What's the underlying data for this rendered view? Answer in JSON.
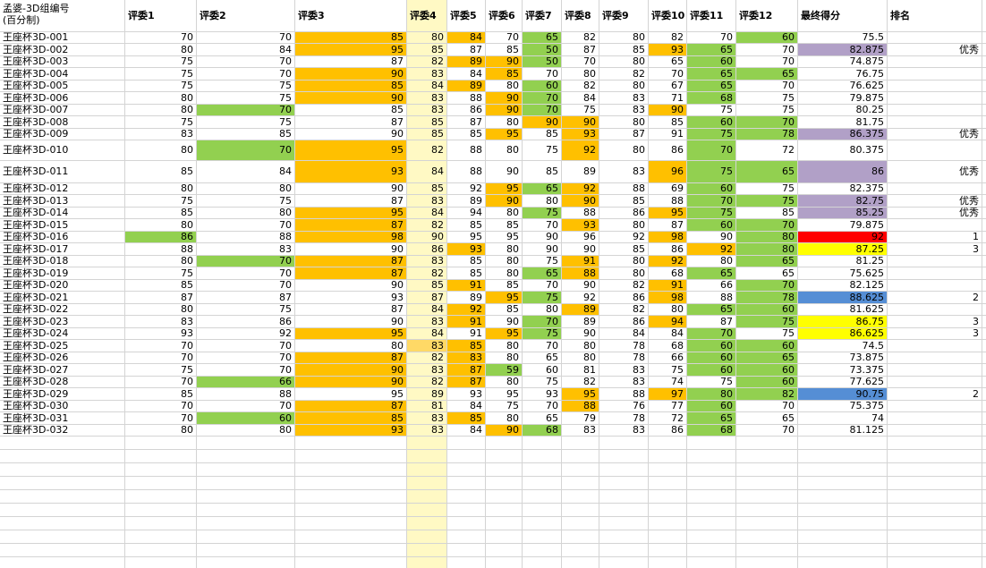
{
  "colors": {
    "orange": "#ffc000",
    "green": "#92d050",
    "purple": "#b1a0c7",
    "red": "#ff0000",
    "yellow": "#ffff00",
    "blue": "#558ed5",
    "judge4": "#fff9c4",
    "judge4_highlight": "#ffd966"
  },
  "sheet": {
    "corner_line1": "孟婆-3D组编号",
    "corner_line2": "(百分制)",
    "headers": [
      "评委1",
      "评委2",
      "评委3",
      "评委4",
      "评委5",
      "评委6",
      "评委7",
      "评委8",
      "评委9",
      "评委10",
      "评委11",
      "评委12",
      "最终得分",
      "排名"
    ],
    "rows": [
      {
        "id": "王座杯3D-001",
        "s": [
          "70",
          "70",
          "85",
          "80",
          "84",
          "70",
          "65",
          "82",
          "80",
          "82",
          "70",
          "60"
        ],
        "f": "75.5",
        "r": "",
        "c": [
          "",
          "",
          "O",
          "",
          "O",
          "",
          "G",
          "",
          "",
          "",
          "",
          "G"
        ],
        "fc": ""
      },
      {
        "id": "王座杯3D-002",
        "s": [
          "80",
          "84",
          "95",
          "85",
          "87",
          "85",
          "50",
          "87",
          "85",
          "93",
          "65",
          "70"
        ],
        "f": "82.875",
        "r": "优秀",
        "c": [
          "",
          "",
          "O",
          "",
          "",
          "",
          "G",
          "",
          "",
          "O",
          "G",
          ""
        ],
        "fc": "P"
      },
      {
        "id": "王座杯3D-003",
        "s": [
          "75",
          "70",
          "87",
          "82",
          "89",
          "90",
          "50",
          "70",
          "80",
          "65",
          "60",
          "70"
        ],
        "f": "74.875",
        "r": "",
        "c": [
          "",
          "",
          "",
          "",
          "O",
          "O",
          "G",
          "",
          "",
          "",
          "G",
          ""
        ],
        "fc": ""
      },
      {
        "id": "王座杯3D-004",
        "s": [
          "75",
          "70",
          "90",
          "83",
          "84",
          "85",
          "70",
          "80",
          "82",
          "70",
          "65",
          "65"
        ],
        "f": "76.75",
        "r": "",
        "c": [
          "",
          "",
          "O",
          "",
          "",
          "O",
          "",
          "",
          "",
          "",
          "G",
          "G"
        ],
        "fc": ""
      },
      {
        "id": "王座杯3D-005",
        "s": [
          "75",
          "75",
          "85",
          "84",
          "89",
          "80",
          "60",
          "82",
          "80",
          "67",
          "65",
          "70"
        ],
        "f": "76.625",
        "r": "",
        "c": [
          "",
          "",
          "O",
          "",
          "O",
          "",
          "G",
          "",
          "",
          "",
          "G",
          ""
        ],
        "fc": ""
      },
      {
        "id": "王座杯3D-006",
        "s": [
          "80",
          "75",
          "90",
          "83",
          "88",
          "90",
          "70",
          "84",
          "83",
          "71",
          "68",
          "75"
        ],
        "f": "79.875",
        "r": "",
        "c": [
          "",
          "",
          "O",
          "",
          "",
          "O",
          "G",
          "",
          "",
          "",
          "G",
          ""
        ],
        "fc": ""
      },
      {
        "id": "王座杯3D-007",
        "s": [
          "80",
          "70",
          "85",
          "83",
          "86",
          "90",
          "70",
          "75",
          "83",
          "90",
          "75",
          "75"
        ],
        "f": "80.25",
        "r": "",
        "c": [
          "",
          "G",
          "",
          "",
          "",
          "O",
          "G",
          "",
          "",
          "O",
          "",
          ""
        ],
        "fc": ""
      },
      {
        "id": "王座杯3D-008",
        "s": [
          "75",
          "75",
          "87",
          "85",
          "87",
          "80",
          "90",
          "90",
          "80",
          "85",
          "60",
          "70"
        ],
        "f": "81.75",
        "r": "",
        "c": [
          "",
          "",
          "",
          "",
          "",
          "",
          "O",
          "O",
          "",
          "",
          "G",
          "G"
        ],
        "fc": ""
      },
      {
        "id": "王座杯3D-009",
        "s": [
          "83",
          "85",
          "90",
          "85",
          "85",
          "95",
          "85",
          "93",
          "87",
          "91",
          "75",
          "78"
        ],
        "f": "86.375",
        "r": "优秀",
        "c": [
          "",
          "",
          "",
          "",
          "",
          "O",
          "",
          "O",
          "",
          "",
          "G",
          "G"
        ],
        "fc": "P"
      },
      {
        "id": "王座杯3D-010",
        "s": [
          "80",
          "70",
          "95",
          "82",
          "88",
          "80",
          "75",
          "92",
          "80",
          "86",
          "70",
          "72"
        ],
        "f": "80.375",
        "r": "",
        "c": [
          "",
          "G",
          "O",
          "",
          "",
          "",
          "",
          "O",
          "",
          "",
          "G",
          ""
        ],
        "fc": ""
      },
      {
        "id": "王座杯3D-011",
        "s": [
          "85",
          "84",
          "93",
          "84",
          "88",
          "90",
          "85",
          "89",
          "83",
          "96",
          "75",
          "65"
        ],
        "f": "86",
        "r": "优秀",
        "c": [
          "",
          "",
          "O",
          "",
          "",
          "",
          "",
          "",
          "",
          "O",
          "G",
          "G"
        ],
        "fc": "P"
      },
      {
        "id": "王座杯3D-012",
        "s": [
          "80",
          "80",
          "90",
          "85",
          "92",
          "95",
          "65",
          "92",
          "88",
          "69",
          "60",
          "75"
        ],
        "f": "82.375",
        "r": "",
        "c": [
          "",
          "",
          "",
          "",
          "",
          "O",
          "G",
          "O",
          "",
          "",
          "G",
          ""
        ],
        "fc": ""
      },
      {
        "id": "王座杯3D-013",
        "s": [
          "75",
          "75",
          "87",
          "83",
          "89",
          "90",
          "80",
          "90",
          "85",
          "88",
          "70",
          "75"
        ],
        "f": "82.75",
        "r": "优秀",
        "c": [
          "",
          "",
          "",
          "",
          "",
          "O",
          "",
          "O",
          "",
          "",
          "G",
          "G"
        ],
        "fc": "P"
      },
      {
        "id": "王座杯3D-014",
        "s": [
          "85",
          "80",
          "95",
          "84",
          "94",
          "80",
          "75",
          "88",
          "86",
          "95",
          "75",
          "85"
        ],
        "f": "85.25",
        "r": "优秀",
        "c": [
          "",
          "",
          "O",
          "",
          "",
          "",
          "G",
          "",
          "",
          "O",
          "G",
          ""
        ],
        "fc": "P"
      },
      {
        "id": "王座杯3D-015",
        "s": [
          "80",
          "70",
          "87",
          "82",
          "85",
          "85",
          "70",
          "93",
          "80",
          "87",
          "60",
          "70"
        ],
        "f": "79.875",
        "r": "",
        "c": [
          "",
          "",
          "O",
          "",
          "",
          "",
          "",
          "O",
          "",
          "",
          "G",
          "G"
        ],
        "fc": ""
      },
      {
        "id": "王座杯3D-016",
        "s": [
          "86",
          "88",
          "98",
          "90",
          "95",
          "95",
          "90",
          "96",
          "92",
          "98",
          "90",
          "80"
        ],
        "f": "92",
        "r": "1",
        "c": [
          "G",
          "",
          "O",
          "",
          "",
          "",
          "",
          "",
          "",
          "O",
          "",
          "G"
        ],
        "fc": "R"
      },
      {
        "id": "王座杯3D-017",
        "s": [
          "88",
          "83",
          "90",
          "86",
          "93",
          "80",
          "90",
          "90",
          "85",
          "86",
          "92",
          "80"
        ],
        "f": "87.25",
        "r": "3",
        "c": [
          "",
          "",
          "",
          "",
          "O",
          "",
          "",
          "",
          "",
          "",
          "O",
          "G"
        ],
        "fc": "Y"
      },
      {
        "id": "王座杯3D-018",
        "s": [
          "80",
          "70",
          "87",
          "83",
          "85",
          "80",
          "75",
          "91",
          "80",
          "92",
          "80",
          "65"
        ],
        "f": "81.25",
        "r": "",
        "c": [
          "",
          "G",
          "O",
          "",
          "",
          "",
          "",
          "O",
          "",
          "O",
          "",
          "G"
        ],
        "fc": ""
      },
      {
        "id": "王座杯3D-019",
        "s": [
          "75",
          "70",
          "87",
          "82",
          "85",
          "80",
          "65",
          "88",
          "80",
          "68",
          "65",
          "65"
        ],
        "f": "75.625",
        "r": "",
        "c": [
          "",
          "",
          "O",
          "",
          "",
          "",
          "G",
          "O",
          "",
          "",
          "G",
          ""
        ],
        "fc": ""
      },
      {
        "id": "王座杯3D-020",
        "s": [
          "85",
          "70",
          "90",
          "85",
          "91",
          "85",
          "70",
          "90",
          "82",
          "91",
          "66",
          "70"
        ],
        "f": "82.125",
        "r": "",
        "c": [
          "",
          "",
          "",
          "",
          "O",
          "",
          "",
          "",
          "",
          "O",
          "",
          "G"
        ],
        "fc": ""
      },
      {
        "id": "王座杯3D-021",
        "s": [
          "87",
          "87",
          "93",
          "87",
          "89",
          "95",
          "75",
          "92",
          "86",
          "98",
          "88",
          "78"
        ],
        "f": "88.625",
        "r": "2",
        "c": [
          "",
          "",
          "",
          "",
          "",
          "O",
          "G",
          "",
          "",
          "O",
          "",
          "G"
        ],
        "fc": "B"
      },
      {
        "id": "王座杯3D-022",
        "s": [
          "80",
          "75",
          "87",
          "84",
          "92",
          "85",
          "80",
          "89",
          "82",
          "80",
          "65",
          "60"
        ],
        "f": "81.625",
        "r": "",
        "c": [
          "",
          "",
          "",
          "",
          "O",
          "",
          "",
          "O",
          "",
          "",
          "G",
          "G"
        ],
        "fc": ""
      },
      {
        "id": "王座杯3D-023",
        "s": [
          "83",
          "86",
          "90",
          "83",
          "91",
          "90",
          "70",
          "89",
          "86",
          "94",
          "87",
          "75"
        ],
        "f": "86.75",
        "r": "3",
        "c": [
          "",
          "",
          "",
          "",
          "O",
          "",
          "G",
          "",
          "",
          "O",
          "",
          "G"
        ],
        "fc": "Y"
      },
      {
        "id": "王座杯3D-024",
        "s": [
          "93",
          "92",
          "95",
          "84",
          "91",
          "95",
          "75",
          "90",
          "84",
          "84",
          "70",
          "75"
        ],
        "f": "86.625",
        "r": "3",
        "c": [
          "",
          "",
          "O",
          "",
          "",
          "O",
          "G",
          "",
          "",
          "",
          "G",
          ""
        ],
        "fc": "Y"
      },
      {
        "id": "王座杯3D-025",
        "s": [
          "70",
          "70",
          "80",
          "83",
          "85",
          "80",
          "70",
          "80",
          "78",
          "68",
          "60",
          "60"
        ],
        "f": "74.5",
        "r": "",
        "c": [
          "",
          "",
          "",
          "H",
          "O",
          "",
          "",
          "",
          "",
          "",
          "G",
          "G"
        ],
        "fc": ""
      },
      {
        "id": "王座杯3D-026",
        "s": [
          "70",
          "70",
          "87",
          "82",
          "83",
          "80",
          "65",
          "80",
          "78",
          "66",
          "60",
          "65"
        ],
        "f": "73.875",
        "r": "",
        "c": [
          "",
          "",
          "O",
          "",
          "O",
          "",
          "",
          "",
          "",
          "",
          "G",
          "G"
        ],
        "fc": ""
      },
      {
        "id": "王座杯3D-027",
        "s": [
          "75",
          "70",
          "90",
          "83",
          "87",
          "59",
          "60",
          "81",
          "83",
          "75",
          "60",
          "60"
        ],
        "f": "73.375",
        "r": "",
        "c": [
          "",
          "",
          "O",
          "",
          "O",
          "G",
          "",
          "",
          "",
          "",
          "G",
          "G"
        ],
        "fc": ""
      },
      {
        "id": "王座杯3D-028",
        "s": [
          "70",
          "66",
          "90",
          "82",
          "87",
          "80",
          "75",
          "82",
          "83",
          "74",
          "75",
          "60"
        ],
        "f": "77.625",
        "r": "",
        "c": [
          "",
          "G",
          "O",
          "",
          "O",
          "",
          "",
          "",
          "",
          "",
          "",
          "G"
        ],
        "fc": ""
      },
      {
        "id": "王座杯3D-029",
        "s": [
          "85",
          "88",
          "95",
          "89",
          "93",
          "95",
          "93",
          "95",
          "88",
          "97",
          "80",
          "82"
        ],
        "f": "90.75",
        "r": "2",
        "c": [
          "",
          "",
          "",
          "",
          "",
          "",
          "",
          "O",
          "",
          "O",
          "G",
          "G"
        ],
        "fc": "B"
      },
      {
        "id": "王座杯3D-030",
        "s": [
          "70",
          "70",
          "87",
          "81",
          "84",
          "75",
          "70",
          "88",
          "76",
          "77",
          "60",
          "70"
        ],
        "f": "75.375",
        "r": "",
        "c": [
          "",
          "",
          "O",
          "",
          "",
          "",
          "",
          "O",
          "",
          "",
          "G",
          ""
        ],
        "fc": ""
      },
      {
        "id": "王座杯3D-031",
        "s": [
          "70",
          "60",
          "85",
          "83",
          "85",
          "80",
          "65",
          "79",
          "78",
          "72",
          "65",
          "65"
        ],
        "f": "74",
        "r": "",
        "c": [
          "",
          "G",
          "O",
          "",
          "O",
          "",
          "",
          "",
          "",
          "",
          "G",
          ""
        ],
        "fc": ""
      },
      {
        "id": "王座杯3D-032",
        "s": [
          "80",
          "80",
          "93",
          "83",
          "84",
          "90",
          "68",
          "83",
          "83",
          "86",
          "68",
          "70"
        ],
        "f": "81.125",
        "r": "",
        "c": [
          "",
          "",
          "O",
          "",
          "",
          "O",
          "G",
          "",
          "",
          "",
          "G",
          ""
        ],
        "fc": ""
      }
    ]
  }
}
